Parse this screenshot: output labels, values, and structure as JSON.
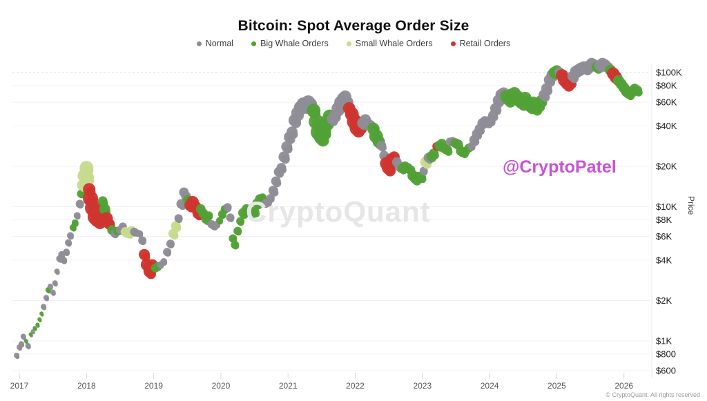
{
  "title": "Bitcoin: Spot Average Order Size",
  "watermark": "CryptoQuant",
  "handle": "@CryptoPatel",
  "footer": "© CryptoQuant. All rights reserved",
  "legend": {
    "items": [
      {
        "label": "Normal",
        "key": "n"
      },
      {
        "label": "Big Whale Orders",
        "key": "b"
      },
      {
        "label": "Small Whale Orders",
        "key": "s"
      },
      {
        "label": "Retail Orders",
        "key": "r"
      }
    ]
  },
  "chart_data": {
    "type": "scatter",
    "title": "Bitcoin: Spot Average Order Size",
    "xlabel": "",
    "ylabel": "Price",
    "y_scale": "log",
    "x_range": [
      2016.9,
      2026.45
    ],
    "y_range": [
      600,
      130000
    ],
    "grid": true,
    "legend_position": "top",
    "x_ticks": [
      2017,
      2018,
      2019,
      2020,
      2021,
      2022,
      2023,
      2024,
      2025,
      2026
    ],
    "y_ticks": [
      {
        "price": 100000,
        "label": "$100K"
      },
      {
        "price": 80000,
        "label": "$80K"
      },
      {
        "price": 60000,
        "label": "$60K"
      },
      {
        "price": 40000,
        "label": "$40K"
      },
      {
        "price": 20000,
        "label": "$20K"
      },
      {
        "price": 10000,
        "label": "$10K"
      },
      {
        "price": 8000,
        "label": "$8K"
      },
      {
        "price": 6000,
        "label": "$6K"
      },
      {
        "price": 4000,
        "label": "$4K"
      },
      {
        "price": 2000,
        "label": "$2K"
      },
      {
        "price": 1000,
        "label": "$1K"
      },
      {
        "price": 800,
        "label": "$800"
      },
      {
        "price": 600,
        "label": "$600"
      }
    ],
    "series_colors": {
      "n": "#8f8c96",
      "b": "#52a136",
      "s": "#c7db8e",
      "r": "#d0342f"
    },
    "series_names": {
      "n": "Normal",
      "b": "Big Whale Orders",
      "s": "Small Whale Orders",
      "r": "Retail Orders"
    },
    "point_format": [
      "year",
      "price_usd",
      "category",
      "marker_radius_px"
    ],
    "points": [
      [
        2016.96,
        780,
        "n",
        4
      ],
      [
        2017.0,
        900,
        "n",
        4
      ],
      [
        2017.03,
        950,
        "n",
        4
      ],
      [
        2017.06,
        1080,
        "n",
        4
      ],
      [
        2017.1,
        1000,
        "b",
        3
      ],
      [
        2017.13,
        920,
        "n",
        4
      ],
      [
        2017.17,
        1120,
        "b",
        3
      ],
      [
        2017.2,
        1180,
        "n",
        3
      ],
      [
        2017.23,
        1250,
        "b",
        3
      ],
      [
        2017.27,
        1320,
        "b",
        3
      ],
      [
        2017.3,
        1450,
        "b",
        3
      ],
      [
        2017.33,
        1600,
        "b",
        3
      ],
      [
        2017.36,
        1800,
        "n",
        4
      ],
      [
        2017.4,
        2100,
        "n",
        4
      ],
      [
        2017.43,
        2400,
        "b",
        4
      ],
      [
        2017.46,
        2550,
        "n",
        4
      ],
      [
        2017.5,
        2300,
        "n",
        4
      ],
      [
        2017.53,
        2700,
        "n",
        4
      ],
      [
        2017.56,
        3300,
        "n",
        4
      ],
      [
        2017.6,
        4100,
        "n",
        5
      ],
      [
        2017.63,
        4400,
        "n",
        5
      ],
      [
        2017.66,
        4000,
        "n",
        5
      ],
      [
        2017.7,
        4600,
        "n",
        5
      ],
      [
        2017.73,
        5400,
        "n",
        5
      ],
      [
        2017.76,
        6100,
        "n",
        5
      ],
      [
        2017.8,
        7000,
        "b",
        5
      ],
      [
        2017.83,
        7600,
        "b",
        5
      ],
      [
        2017.86,
        8600,
        "n",
        5
      ],
      [
        2017.9,
        10500,
        "n",
        6
      ],
      [
        2017.92,
        12500,
        "b",
        6
      ],
      [
        2017.94,
        14500,
        "s",
        8
      ],
      [
        2017.97,
        17000,
        "s",
        10
      ],
      [
        2018.0,
        19500,
        "s",
        10
      ],
      [
        2018.02,
        16500,
        "s",
        9
      ],
      [
        2018.04,
        13500,
        "r",
        9
      ],
      [
        2018.06,
        11500,
        "r",
        11
      ],
      [
        2018.1,
        9800,
        "r",
        12
      ],
      [
        2018.14,
        8400,
        "r",
        12
      ],
      [
        2018.18,
        8000,
        "r",
        11
      ],
      [
        2018.22,
        9200,
        "r",
        10
      ],
      [
        2018.24,
        11000,
        "b",
        7
      ],
      [
        2018.27,
        9600,
        "b",
        8
      ],
      [
        2018.3,
        8200,
        "r",
        9
      ],
      [
        2018.34,
        7400,
        "r",
        8
      ],
      [
        2018.38,
        6700,
        "b",
        7
      ],
      [
        2018.42,
        6300,
        "n",
        6
      ],
      [
        2018.46,
        6600,
        "b",
        6
      ],
      [
        2018.5,
        6700,
        "n",
        6
      ],
      [
        2018.54,
        7100,
        "n",
        6
      ],
      [
        2018.58,
        6500,
        "s",
        7
      ],
      [
        2018.63,
        6400,
        "s",
        7
      ],
      [
        2018.67,
        6600,
        "s",
        7
      ],
      [
        2018.71,
        6500,
        "n",
        6
      ],
      [
        2018.75,
        6400,
        "n",
        5
      ],
      [
        2018.79,
        6300,
        "n",
        5
      ],
      [
        2018.83,
        5600,
        "n",
        6
      ],
      [
        2018.86,
        4400,
        "r",
        8
      ],
      [
        2018.9,
        3700,
        "r",
        9
      ],
      [
        2018.94,
        3300,
        "r",
        9
      ],
      [
        2018.98,
        3700,
        "r",
        8
      ],
      [
        2019.02,
        3500,
        "b",
        6
      ],
      [
        2019.06,
        3600,
        "b",
        6
      ],
      [
        2019.1,
        3700,
        "n",
        5
      ],
      [
        2019.15,
        3900,
        "n",
        5
      ],
      [
        2019.2,
        4600,
        "n",
        6
      ],
      [
        2019.25,
        5300,
        "n",
        6
      ],
      [
        2019.29,
        6300,
        "s",
        7
      ],
      [
        2019.33,
        7200,
        "s",
        7
      ],
      [
        2019.37,
        8200,
        "n",
        6
      ],
      [
        2019.41,
        10500,
        "n",
        7
      ],
      [
        2019.45,
        12800,
        "n",
        7
      ],
      [
        2019.48,
        12000,
        "n",
        7
      ],
      [
        2019.51,
        11200,
        "b",
        7
      ],
      [
        2019.54,
        10200,
        "r",
        8
      ],
      [
        2019.58,
        10800,
        "r",
        9
      ],
      [
        2019.62,
        9900,
        "r",
        9
      ],
      [
        2019.66,
        8900,
        "r",
        8
      ],
      [
        2019.7,
        9600,
        "b",
        7
      ],
      [
        2019.74,
        8900,
        "b",
        7
      ],
      [
        2019.78,
        8100,
        "b",
        7
      ],
      [
        2019.82,
        8600,
        "b",
        6
      ],
      [
        2019.86,
        7400,
        "n",
        6
      ],
      [
        2019.9,
        7200,
        "n",
        6
      ],
      [
        2019.94,
        7400,
        "n",
        5
      ],
      [
        2019.98,
        7900,
        "b",
        5
      ],
      [
        2020.02,
        8800,
        "b",
        6
      ],
      [
        2020.06,
        9600,
        "b",
        6
      ],
      [
        2020.1,
        9900,
        "n",
        6
      ],
      [
        2020.14,
        8300,
        "n",
        6
      ],
      [
        2020.18,
        5800,
        "b",
        6
      ],
      [
        2020.21,
        5200,
        "b",
        6
      ],
      [
        2020.25,
        6600,
        "b",
        6
      ],
      [
        2020.29,
        7800,
        "b",
        6
      ],
      [
        2020.33,
        9000,
        "b",
        7
      ],
      [
        2020.38,
        9600,
        "b",
        7
      ],
      [
        2020.42,
        9400,
        "b",
        7
      ],
      [
        2020.46,
        9100,
        "b",
        7
      ],
      [
        2020.5,
        9200,
        "b",
        7
      ],
      [
        2020.54,
        10600,
        "b",
        7
      ],
      [
        2020.58,
        11400,
        "b",
        7
      ],
      [
        2020.62,
        11700,
        "b",
        6
      ],
      [
        2020.66,
        10600,
        "n",
        6
      ],
      [
        2020.7,
        10800,
        "n",
        6
      ],
      [
        2020.74,
        11600,
        "n",
        6
      ],
      [
        2020.78,
        13200,
        "n",
        7
      ],
      [
        2020.82,
        15500,
        "n",
        7
      ],
      [
        2020.86,
        18200,
        "n",
        7
      ],
      [
        2020.9,
        19500,
        "n",
        7
      ],
      [
        2020.94,
        23500,
        "n",
        8
      ],
      [
        2020.98,
        28000,
        "n",
        8
      ],
      [
        2021.02,
        33000,
        "n",
        8
      ],
      [
        2021.06,
        36000,
        "n",
        8
      ],
      [
        2021.1,
        44000,
        "n",
        9
      ],
      [
        2021.14,
        50000,
        "n",
        9
      ],
      [
        2021.18,
        55000,
        "n",
        9
      ],
      [
        2021.22,
        58500,
        "n",
        9
      ],
      [
        2021.26,
        57000,
        "n",
        10
      ],
      [
        2021.3,
        60000,
        "n",
        10
      ],
      [
        2021.34,
        58000,
        "n",
        9
      ],
      [
        2021.38,
        52000,
        "b",
        10
      ],
      [
        2021.42,
        43000,
        "b",
        11
      ],
      [
        2021.46,
        36000,
        "b",
        12
      ],
      [
        2021.5,
        33000,
        "b",
        11
      ],
      [
        2021.54,
        36500,
        "b",
        10
      ],
      [
        2021.58,
        43000,
        "b",
        10
      ],
      [
        2021.62,
        47000,
        "b",
        10
      ],
      [
        2021.66,
        45000,
        "n",
        8
      ],
      [
        2021.7,
        48000,
        "n",
        8
      ],
      [
        2021.74,
        54000,
        "n",
        9
      ],
      [
        2021.78,
        60000,
        "n",
        9
      ],
      [
        2021.82,
        64000,
        "n",
        9
      ],
      [
        2021.85,
        66000,
        "n",
        9
      ],
      [
        2021.88,
        60000,
        "n",
        9
      ],
      [
        2021.91,
        54000,
        "r",
        9
      ],
      [
        2021.95,
        49000,
        "r",
        10
      ],
      [
        2021.99,
        43000,
        "r",
        11
      ],
      [
        2022.03,
        38500,
        "r",
        11
      ],
      [
        2022.07,
        40000,
        "r",
        10
      ],
      [
        2022.11,
        42000,
        "n",
        8
      ],
      [
        2022.15,
        44500,
        "n",
        8
      ],
      [
        2022.19,
        42000,
        "n",
        7
      ],
      [
        2022.23,
        40500,
        "n",
        7
      ],
      [
        2022.27,
        38000,
        "b",
        9
      ],
      [
        2022.31,
        33500,
        "b",
        10
      ],
      [
        2022.35,
        30500,
        "b",
        9
      ],
      [
        2022.39,
        28500,
        "n",
        7
      ],
      [
        2022.43,
        24000,
        "n",
        7
      ],
      [
        2022.46,
        21000,
        "r",
        9
      ],
      [
        2022.5,
        19500,
        "r",
        10
      ],
      [
        2022.54,
        22500,
        "r",
        9
      ],
      [
        2022.58,
        23500,
        "r",
        8
      ],
      [
        2022.62,
        21500,
        "n",
        7
      ],
      [
        2022.66,
        19800,
        "n",
        7
      ],
      [
        2022.7,
        19300,
        "b",
        7
      ],
      [
        2022.74,
        20000,
        "b",
        7
      ],
      [
        2022.78,
        19500,
        "b",
        7
      ],
      [
        2022.82,
        18800,
        "b",
        7
      ],
      [
        2022.86,
        17000,
        "b",
        8
      ],
      [
        2022.9,
        16200,
        "b",
        8
      ],
      [
        2022.94,
        16800,
        "b",
        7
      ],
      [
        2022.98,
        16600,
        "b",
        7
      ],
      [
        2023.02,
        18500,
        "n",
        6
      ],
      [
        2023.05,
        21500,
        "s",
        8
      ],
      [
        2023.09,
        23200,
        "n",
        7
      ],
      [
        2023.13,
        23800,
        "b",
        7
      ],
      [
        2023.17,
        25000,
        "b",
        7
      ],
      [
        2023.21,
        28200,
        "r",
        6
      ],
      [
        2023.25,
        28500,
        "b",
        7
      ],
      [
        2023.29,
        29500,
        "b",
        7
      ],
      [
        2023.33,
        27200,
        "b",
        7
      ],
      [
        2023.37,
        26500,
        "b",
        7
      ],
      [
        2023.41,
        30500,
        "n",
        6
      ],
      [
        2023.45,
        30800,
        "n",
        6
      ],
      [
        2023.49,
        29800,
        "b",
        7
      ],
      [
        2023.53,
        29200,
        "b",
        7
      ],
      [
        2023.57,
        26000,
        "b",
        7
      ],
      [
        2023.61,
        25500,
        "b",
        7
      ],
      [
        2023.65,
        26200,
        "b",
        6
      ],
      [
        2023.69,
        27500,
        "b",
        6
      ],
      [
        2023.73,
        28200,
        "n",
        6
      ],
      [
        2023.77,
        31500,
        "n",
        7
      ],
      [
        2023.81,
        35000,
        "n",
        7
      ],
      [
        2023.85,
        38000,
        "n",
        7
      ],
      [
        2023.89,
        42000,
        "n",
        7
      ],
      [
        2023.93,
        43500,
        "n",
        7
      ],
      [
        2023.97,
        42500,
        "n",
        7
      ],
      [
        2024.01,
        44000,
        "n",
        7
      ],
      [
        2024.05,
        48000,
        "n",
        7
      ],
      [
        2024.09,
        54000,
        "n",
        8
      ],
      [
        2024.13,
        62000,
        "n",
        8
      ],
      [
        2024.17,
        68500,
        "n",
        8
      ],
      [
        2024.21,
        70500,
        "n",
        8
      ],
      [
        2024.25,
        66500,
        "b",
        9
      ],
      [
        2024.29,
        63500,
        "b",
        10
      ],
      [
        2024.33,
        67500,
        "b",
        10
      ],
      [
        2024.37,
        70000,
        "b",
        9
      ],
      [
        2024.41,
        65500,
        "b",
        10
      ],
      [
        2024.45,
        62000,
        "b",
        10
      ],
      [
        2024.49,
        60000,
        "b",
        10
      ],
      [
        2024.53,
        64500,
        "b",
        9
      ],
      [
        2024.57,
        58500,
        "b",
        9
      ],
      [
        2024.61,
        56000,
        "b",
        9
      ],
      [
        2024.65,
        59500,
        "b",
        9
      ],
      [
        2024.69,
        54500,
        "b",
        9
      ],
      [
        2024.73,
        58000,
        "b",
        9
      ],
      [
        2024.77,
        62000,
        "b",
        8
      ],
      [
        2024.81,
        68000,
        "n",
        8
      ],
      [
        2024.85,
        76000,
        "n",
        8
      ],
      [
        2024.89,
        88000,
        "n",
        8
      ],
      [
        2024.93,
        96000,
        "n",
        8
      ],
      [
        2024.96,
        100000,
        "b",
        8
      ],
      [
        2025.0,
        103000,
        "b",
        8
      ],
      [
        2025.04,
        101000,
        "n",
        7
      ],
      [
        2025.08,
        95000,
        "r",
        9
      ],
      [
        2025.12,
        88000,
        "r",
        10
      ],
      [
        2025.16,
        83500,
        "r",
        10
      ],
      [
        2025.2,
        86000,
        "r",
        9
      ],
      [
        2025.24,
        94000,
        "n",
        8
      ],
      [
        2025.28,
        102000,
        "n",
        8
      ],
      [
        2025.32,
        105000,
        "n",
        8
      ],
      [
        2025.36,
        108000,
        "n",
        8
      ],
      [
        2025.4,
        110000,
        "n",
        8
      ],
      [
        2025.44,
        107000,
        "n",
        8
      ],
      [
        2025.48,
        112000,
        "n",
        8
      ],
      [
        2025.52,
        117000,
        "n",
        8
      ],
      [
        2025.56,
        114000,
        "n",
        8
      ],
      [
        2025.6,
        110000,
        "b",
        8
      ],
      [
        2025.64,
        113000,
        "n",
        8
      ],
      [
        2025.68,
        117000,
        "n",
        8
      ],
      [
        2025.72,
        114000,
        "n",
        8
      ],
      [
        2025.76,
        109000,
        "n",
        8
      ],
      [
        2025.8,
        104000,
        "b",
        8
      ],
      [
        2025.84,
        98000,
        "r",
        9
      ],
      [
        2025.88,
        92000,
        "r",
        9
      ],
      [
        2025.92,
        87000,
        "b",
        8
      ],
      [
        2025.96,
        82000,
        "b",
        8
      ],
      [
        2026.0,
        77000,
        "b",
        8
      ],
      [
        2026.04,
        72000,
        "b",
        8
      ],
      [
        2026.08,
        69000,
        "b",
        7
      ],
      [
        2026.12,
        73000,
        "b",
        7
      ],
      [
        2026.16,
        76000,
        "b",
        7
      ],
      [
        2026.2,
        73500,
        "b",
        7
      ]
    ]
  }
}
